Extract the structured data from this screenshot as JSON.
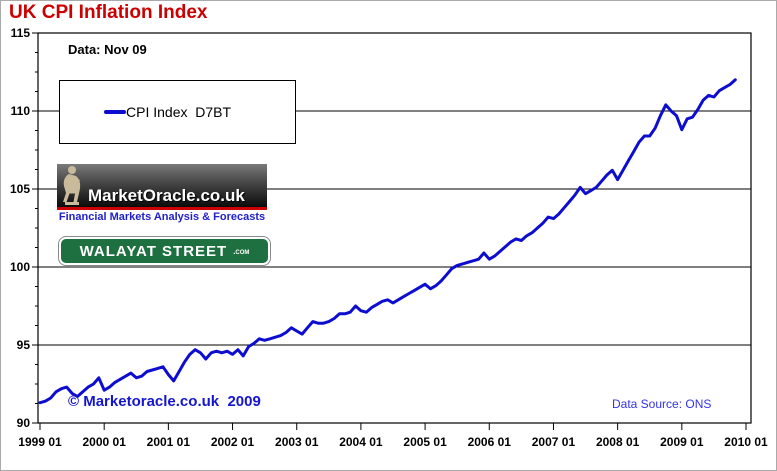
{
  "page": {
    "title": "UK CPI Inflation Index",
    "data_asof": "Data: Nov 09",
    "copyright": "© Marketoracle.co.uk  2009",
    "data_source": "Data Source: ONS"
  },
  "legend": {
    "label": "CPI Index  D7BT"
  },
  "logos": {
    "marketoracle": {
      "name": "MarketOracle.co.uk",
      "tagline": "Financial Markets Analysis & Forecasts"
    },
    "walayat": {
      "name": "WALAYAT STREET",
      "suffix": ".com"
    }
  },
  "colors": {
    "title_red": "#CC0000",
    "series_blue": "#0D0DD0",
    "copyright_blue": "#1515D0",
    "source_blue": "#3333E6",
    "tagline_blue": "#2020CC",
    "sign_green": "#1F7040",
    "banner_red_stripe": "#CC0000",
    "statue_tan": "#C9BA9B",
    "grid_black": "#000000"
  },
  "chart_data": {
    "type": "line",
    "title": "UK CPI Inflation Index",
    "series_name": "CPI Index D7BT",
    "x_frequency": "monthly",
    "x_start": "1999-01",
    "x_end": "2009-11",
    "x_tick_labels": [
      "1999 01",
      "2000 01",
      "2001 01",
      "2002 01",
      "2003 01",
      "2004 01",
      "2005 01",
      "2006 01",
      "2007 01",
      "2008 01",
      "2009 01",
      "2010 01"
    ],
    "ylim": [
      90,
      115
    ],
    "y_ticks_major": [
      90,
      95,
      100,
      105,
      110,
      115
    ],
    "y_minor_step": 1.25,
    "grid": "horizontal-only",
    "legend_position": "top-left",
    "values": [
      91.3,
      91.4,
      91.6,
      92.0,
      92.2,
      92.3,
      91.9,
      91.7,
      92.0,
      92.3,
      92.5,
      92.9,
      92.1,
      92.3,
      92.6,
      92.8,
      93.0,
      93.2,
      92.9,
      93.0,
      93.3,
      93.4,
      93.5,
      93.6,
      93.1,
      92.7,
      93.3,
      93.9,
      94.4,
      94.7,
      94.5,
      94.1,
      94.5,
      94.6,
      94.5,
      94.6,
      94.4,
      94.7,
      94.3,
      94.9,
      95.1,
      95.4,
      95.3,
      95.4,
      95.5,
      95.6,
      95.8,
      96.1,
      95.9,
      95.7,
      96.1,
      96.5,
      96.4,
      96.4,
      96.5,
      96.7,
      97.0,
      97.0,
      97.1,
      97.5,
      97.2,
      97.1,
      97.4,
      97.6,
      97.8,
      97.9,
      97.7,
      97.9,
      98.1,
      98.3,
      98.5,
      98.7,
      98.9,
      98.6,
      98.8,
      99.1,
      99.5,
      99.9,
      100.1,
      100.2,
      100.3,
      100.4,
      100.5,
      100.9,
      100.5,
      100.7,
      101.0,
      101.3,
      101.6,
      101.8,
      101.7,
      102.0,
      102.2,
      102.5,
      102.8,
      103.2,
      103.1,
      103.4,
      103.8,
      104.2,
      104.6,
      105.1,
      104.7,
      104.9,
      105.1,
      105.5,
      105.9,
      106.2,
      105.6,
      106.2,
      106.8,
      107.4,
      108.0,
      108.4,
      108.4,
      108.9,
      109.7,
      110.4,
      110.0,
      109.7,
      108.8,
      109.5,
      109.6,
      110.1,
      110.7,
      111.0,
      110.9,
      111.3,
      111.5,
      111.7,
      112.0
    ]
  }
}
